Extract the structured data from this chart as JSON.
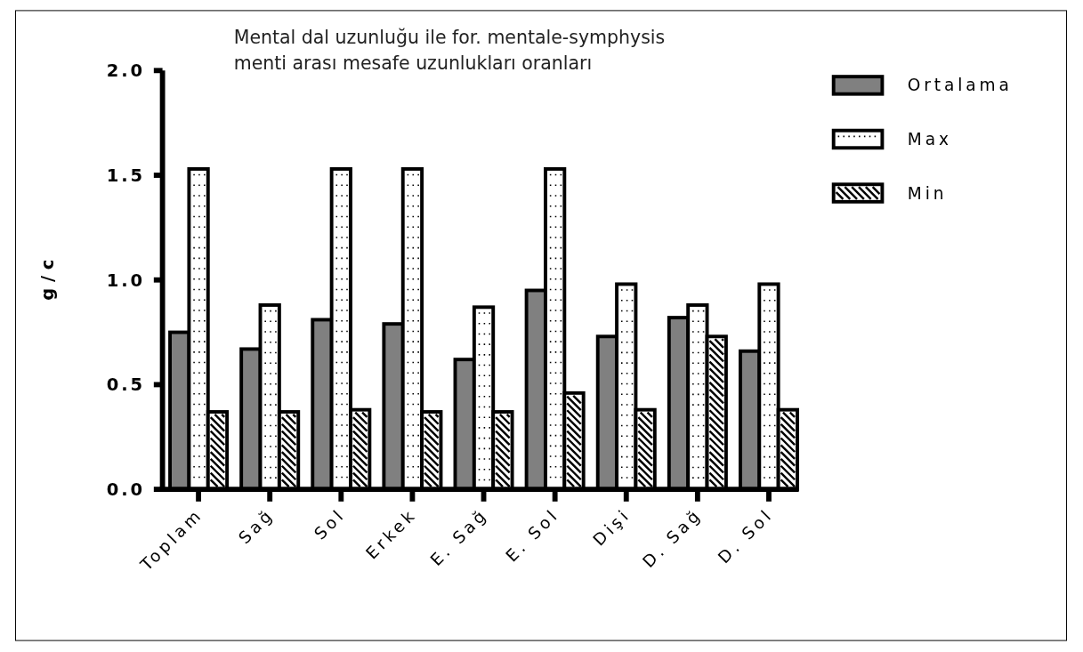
{
  "chart_data": {
    "type": "bar",
    "title": "Mental dal uzunluğu ile for. mentale-symphysis\nmenti arası mesafe uzunlukları oranları",
    "ylabel": "g / c",
    "categories": [
      "Toplam",
      "Sağ",
      "Sol",
      "Erkek",
      "E. Sağ",
      "E. Sol",
      "Dişi",
      "D. Sağ",
      "D. Sol"
    ],
    "series": [
      {
        "name": "Ortalama",
        "color": "#808080",
        "values": [
          0.75,
          0.67,
          0.81,
          0.79,
          0.62,
          0.95,
          0.73,
          0.82,
          0.66
        ]
      },
      {
        "name": "Max",
        "color": "#ffffff",
        "values": [
          1.53,
          0.88,
          1.53,
          1.53,
          0.87,
          1.53,
          0.98,
          0.88,
          0.98
        ]
      },
      {
        "name": "Min",
        "color": "#ffffff",
        "values": [
          0.37,
          0.37,
          0.38,
          0.37,
          0.37,
          0.46,
          0.38,
          0.73,
          0.38
        ]
      }
    ],
    "ylim": [
      0,
      2
    ],
    "yticks": [
      {
        "value": 0,
        "label": "0.0"
      },
      {
        "value": 0.5,
        "label": "0.5"
      },
      {
        "value": 1,
        "label": "1.0"
      },
      {
        "value": 1.5,
        "label": "1.5"
      },
      {
        "value": 2,
        "label": "2.0"
      }
    ],
    "grid": false,
    "legend": "top right"
  }
}
